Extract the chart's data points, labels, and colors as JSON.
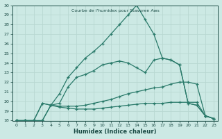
{
  "title": "Courbe de l'humidex pour Stavoren Aws",
  "xlabel": "Humidex (Indice chaleur)",
  "xlim": [
    -0.5,
    23.5
  ],
  "ylim": [
    18,
    30
  ],
  "xticks": [
    0,
    1,
    2,
    3,
    4,
    5,
    6,
    7,
    8,
    9,
    10,
    11,
    12,
    13,
    14,
    15,
    16,
    17,
    18,
    19,
    20,
    21,
    22,
    23
  ],
  "yticks": [
    18,
    19,
    20,
    21,
    22,
    23,
    24,
    25,
    26,
    27,
    28,
    29,
    30
  ],
  "bg_color": "#cce9e4",
  "line_color": "#2a7a6a",
  "grid_color": "#b8d8d2",
  "lines": [
    [
      18.0,
      18.0,
      18.0,
      18.0,
      19.6,
      19.4,
      19.3,
      19.2,
      19.2,
      19.2,
      19.3,
      19.4,
      19.5,
      19.6,
      19.7,
      19.8,
      19.8,
      19.8,
      19.9,
      19.9,
      19.9,
      19.9,
      18.5,
      18.2
    ],
    [
      18.0,
      18.0,
      18.0,
      18.0,
      19.6,
      19.5,
      19.5,
      19.5,
      19.6,
      19.8,
      20.0,
      20.2,
      20.5,
      20.8,
      21.0,
      21.2,
      21.4,
      21.5,
      21.8,
      22.0,
      22.0,
      21.8,
      18.5,
      18.2
    ],
    [
      18.0,
      18.0,
      18.0,
      19.8,
      19.6,
      19.8,
      21.5,
      22.5,
      22.8,
      23.2,
      23.8,
      24.0,
      24.2,
      24.0,
      23.5,
      23.0,
      24.3,
      24.5,
      24.3,
      23.8,
      19.8,
      19.6,
      18.5,
      18.2
    ],
    [
      18.0,
      18.0,
      18.0,
      19.8,
      19.6,
      20.8,
      22.5,
      23.5,
      24.5,
      25.2,
      26.0,
      27.0,
      28.0,
      29.0,
      30.0,
      28.5,
      27.0,
      24.5,
      24.3,
      23.8,
      19.8,
      19.6,
      18.5,
      18.2
    ]
  ]
}
